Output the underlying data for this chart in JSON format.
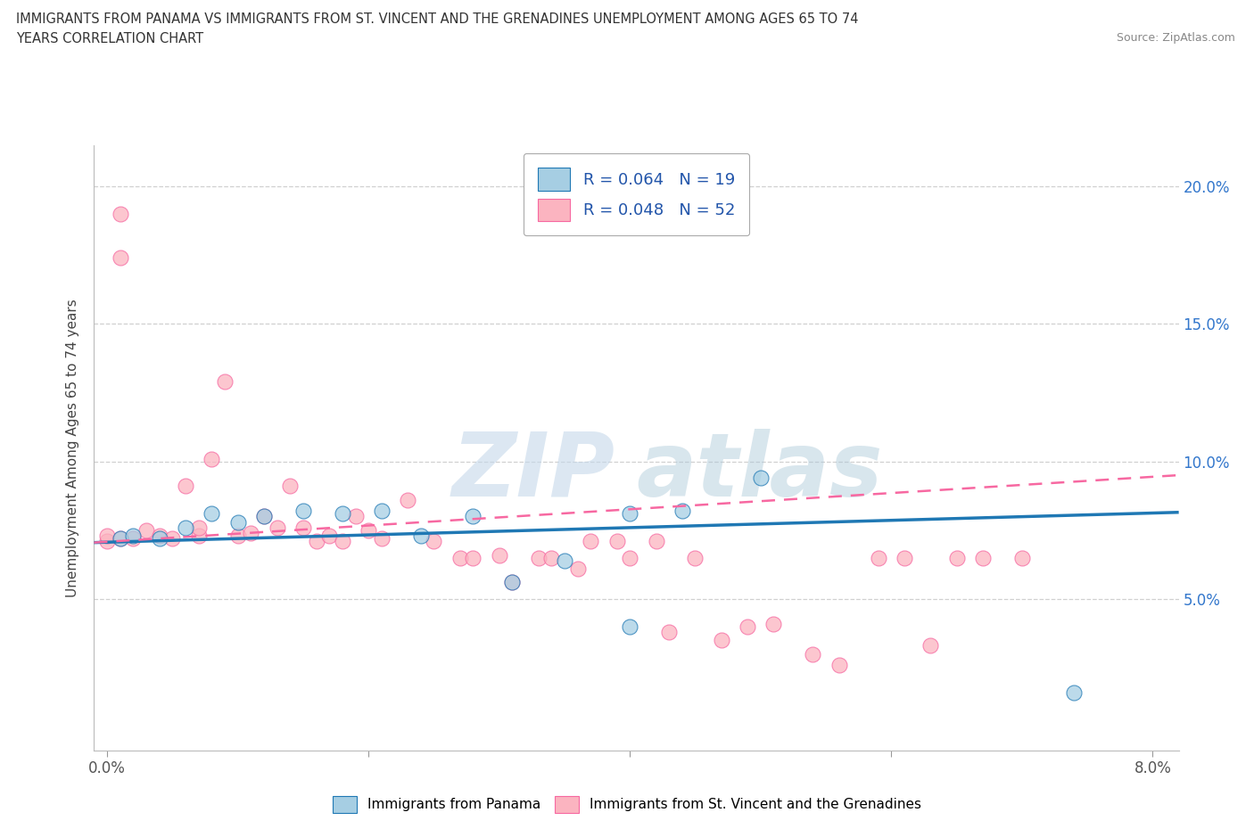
{
  "title_line1": "IMMIGRANTS FROM PANAMA VS IMMIGRANTS FROM ST. VINCENT AND THE GRENADINES UNEMPLOYMENT AMONG AGES 65 TO 74",
  "title_line2": "YEARS CORRELATION CHART",
  "source": "Source: ZipAtlas.com",
  "ylabel": "Unemployment Among Ages 65 to 74 years",
  "xlim": [
    -0.001,
    0.082
  ],
  "ylim": [
    -0.005,
    0.215
  ],
  "xticks": [
    0.0,
    0.02,
    0.04,
    0.06,
    0.08
  ],
  "xtick_labels": [
    "0.0%",
    "",
    "",
    "",
    "8.0%"
  ],
  "yticks": [
    0.05,
    0.1,
    0.15,
    0.2
  ],
  "ytick_labels": [
    "5.0%",
    "10.0%",
    "15.0%",
    "20.0%"
  ],
  "panama_color": "#a6cee3",
  "panama_edge": "#1f78b4",
  "stvincent_color": "#fbb4c0",
  "stvincent_edge": "#f768a1",
  "legend_r_panama": "R = 0.064",
  "legend_n_panama": "N = 19",
  "legend_r_stvincent": "R = 0.048",
  "legend_n_stvincent": "N = 52",
  "panama_scatter_x": [
    0.001,
    0.002,
    0.004,
    0.006,
    0.008,
    0.01,
    0.012,
    0.015,
    0.018,
    0.021,
    0.024,
    0.028,
    0.031,
    0.035,
    0.04,
    0.04,
    0.044,
    0.05,
    0.074
  ],
  "panama_scatter_y": [
    0.072,
    0.073,
    0.072,
    0.076,
    0.081,
    0.078,
    0.08,
    0.082,
    0.081,
    0.082,
    0.073,
    0.08,
    0.056,
    0.064,
    0.04,
    0.081,
    0.082,
    0.094,
    0.016
  ],
  "stvincent_scatter_x": [
    0.0,
    0.0,
    0.001,
    0.001,
    0.001,
    0.002,
    0.003,
    0.004,
    0.005,
    0.006,
    0.007,
    0.007,
    0.008,
    0.009,
    0.01,
    0.011,
    0.012,
    0.013,
    0.014,
    0.015,
    0.016,
    0.017,
    0.018,
    0.019,
    0.02,
    0.021,
    0.023,
    0.025,
    0.027,
    0.028,
    0.03,
    0.031,
    0.033,
    0.034,
    0.036,
    0.037,
    0.039,
    0.04,
    0.042,
    0.043,
    0.045,
    0.047,
    0.049,
    0.051,
    0.054,
    0.056,
    0.059,
    0.061,
    0.063,
    0.065,
    0.067,
    0.07
  ],
  "stvincent_scatter_y": [
    0.071,
    0.073,
    0.072,
    0.19,
    0.174,
    0.072,
    0.075,
    0.073,
    0.072,
    0.091,
    0.073,
    0.076,
    0.101,
    0.129,
    0.073,
    0.074,
    0.08,
    0.076,
    0.091,
    0.076,
    0.071,
    0.073,
    0.071,
    0.08,
    0.075,
    0.072,
    0.086,
    0.071,
    0.065,
    0.065,
    0.066,
    0.056,
    0.065,
    0.065,
    0.061,
    0.071,
    0.071,
    0.065,
    0.071,
    0.038,
    0.065,
    0.035,
    0.04,
    0.041,
    0.03,
    0.026,
    0.065,
    0.065,
    0.033,
    0.065,
    0.065,
    0.065
  ],
  "watermark_zip": "ZIP",
  "watermark_atlas": "atlas",
  "background_color": "#ffffff",
  "grid_color": "#d0d0d0",
  "panama_trend_y": [
    0.0705,
    0.0815
  ],
  "stvincent_trend_y": [
    0.0705,
    0.095
  ]
}
